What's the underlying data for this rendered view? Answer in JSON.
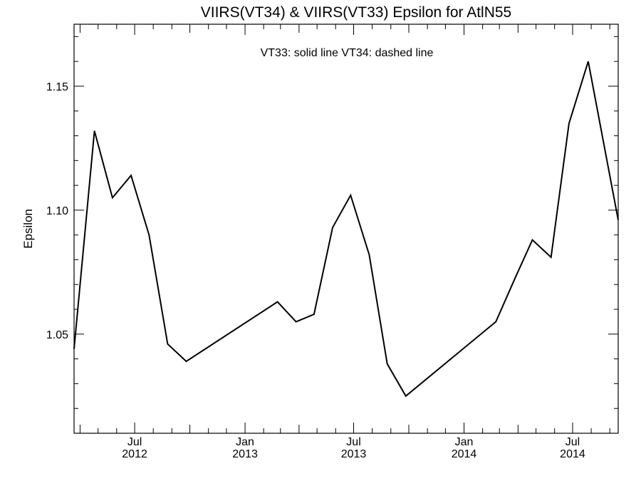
{
  "chart_data": {
    "type": "line",
    "title": "VIIRS(VT34) & VIIRS(VT33)  Epsilon for AtlN55",
    "annotation": "VT33: solid line   VT34: dashed line",
    "xlabel": "",
    "ylabel": "Epsilon",
    "xlim": [
      "2012-03-22",
      "2014-09-15"
    ],
    "ylim": [
      1.01,
      1.175
    ],
    "y_ticks": [
      "1.05",
      "1.10",
      "1.15"
    ],
    "x_ticks": [
      {
        "date": "2012-07-01",
        "line1": "Jul",
        "line2": "2012"
      },
      {
        "date": "2013-01-01",
        "line1": "Jan",
        "line2": "2013"
      },
      {
        "date": "2013-07-01",
        "line1": "Jul",
        "line2": "2013"
      },
      {
        "date": "2014-01-01",
        "line1": "Jan",
        "line2": "2014"
      },
      {
        "date": "2014-07-01",
        "line1": "Jul",
        "line2": "2014"
      }
    ],
    "grid": false,
    "series": [
      {
        "line_style": "solid",
        "color": "#000000",
        "points": [
          {
            "x": "2012-03-22",
            "y": 1.044
          },
          {
            "x": "2012-04-25",
            "y": 1.132
          },
          {
            "x": "2012-05-25",
            "y": 1.105
          },
          {
            "x": "2012-06-25",
            "y": 1.114
          },
          {
            "x": "2012-07-25",
            "y": 1.09
          },
          {
            "x": "2012-08-25",
            "y": 1.046
          },
          {
            "x": "2012-09-25",
            "y": 1.039
          },
          {
            "x": "2013-02-24",
            "y": 1.063
          },
          {
            "x": "2013-03-27",
            "y": 1.055
          },
          {
            "x": "2013-04-26",
            "y": 1.058
          },
          {
            "x": "2013-05-27",
            "y": 1.093
          },
          {
            "x": "2013-06-26",
            "y": 1.106
          },
          {
            "x": "2013-07-27",
            "y": 1.082
          },
          {
            "x": "2013-08-26",
            "y": 1.038
          },
          {
            "x": "2013-09-26",
            "y": 1.025
          },
          {
            "x": "2014-02-23",
            "y": 1.055
          },
          {
            "x": "2014-03-26",
            "y": 1.072
          },
          {
            "x": "2014-04-25",
            "y": 1.088
          },
          {
            "x": "2014-05-26",
            "y": 1.081
          },
          {
            "x": "2014-06-25",
            "y": 1.135
          },
          {
            "x": "2014-07-27",
            "y": 1.16
          },
          {
            "x": "2014-09-15",
            "y": 1.096
          }
        ]
      }
    ]
  }
}
